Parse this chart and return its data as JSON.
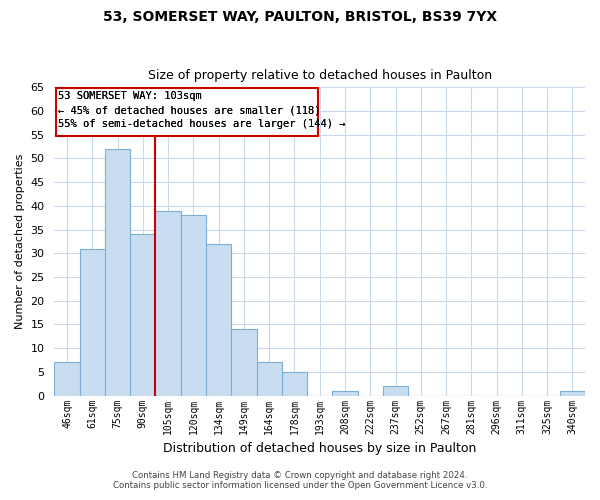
{
  "title1": "53, SOMERSET WAY, PAULTON, BRISTOL, BS39 7YX",
  "title2": "Size of property relative to detached houses in Paulton",
  "xlabel": "Distribution of detached houses by size in Paulton",
  "ylabel": "Number of detached properties",
  "bar_labels": [
    "46sqm",
    "61sqm",
    "75sqm",
    "90sqm",
    "105sqm",
    "120sqm",
    "134sqm",
    "149sqm",
    "164sqm",
    "178sqm",
    "193sqm",
    "208sqm",
    "222sqm",
    "237sqm",
    "252sqm",
    "267sqm",
    "281sqm",
    "296sqm",
    "311sqm",
    "325sqm",
    "340sqm"
  ],
  "bar_values": [
    7,
    31,
    52,
    34,
    39,
    38,
    32,
    14,
    7,
    5,
    0,
    1,
    0,
    2,
    0,
    0,
    0,
    0,
    0,
    0,
    1
  ],
  "bar_color": "#c8ddf0",
  "bar_edge_color": "#7bafd4",
  "ylim": [
    0,
    65
  ],
  "yticks": [
    0,
    5,
    10,
    15,
    20,
    25,
    30,
    35,
    40,
    45,
    50,
    55,
    60,
    65
  ],
  "property_line_idx": 4,
  "property_line_color": "#cc0000",
  "annotation_text_line1": "53 SOMERSET WAY: 103sqm",
  "annotation_text_line2": "← 45% of detached houses are smaller (118)",
  "annotation_text_line3": "55% of semi-detached houses are larger (144) →",
  "footer_line1": "Contains HM Land Registry data © Crown copyright and database right 2024.",
  "footer_line2": "Contains public sector information licensed under the Open Government Licence v3.0.",
  "background_color": "#ffffff",
  "grid_color": "#c8d8e8"
}
